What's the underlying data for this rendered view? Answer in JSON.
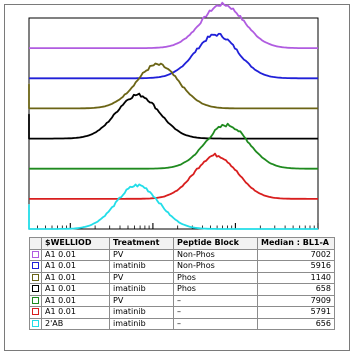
{
  "chart_data": {
    "type": "area",
    "style": "offset-histogram",
    "grid": false,
    "legend_placement": "bottom",
    "legend": {
      "columns": [
        "$WELLIOD",
        "Treatment",
        "Peptide Block",
        "Median : BL1-A"
      ],
      "rows": [
        {
          "well": "A1 0.01",
          "treatment": "PV",
          "peptide": "Non-Phos",
          "median": "7002",
          "color": "#b05ce0"
        },
        {
          "well": "A1 0.01",
          "treatment": "imatinib",
          "peptide": "Non-Phos",
          "median": "5916",
          "color": "#2020d8"
        },
        {
          "well": "A1 0.01",
          "treatment": "PV",
          "peptide": "Phos",
          "median": "1140",
          "color": "#6b6415"
        },
        {
          "well": "A1 0.01",
          "treatment": "imatinib",
          "peptide": "Phos",
          "median": "658",
          "color": "#000000"
        },
        {
          "well": "A1 0.01",
          "treatment": "PV",
          "peptide": "–",
          "median": "7909",
          "color": "#1f8a1f"
        },
        {
          "well": "A1 0.01",
          "treatment": "imatinib",
          "peptide": "–",
          "median": "5791",
          "color": "#d81e1e"
        },
        {
          "well": "2'AB",
          "treatment": "imatinib",
          "peptide": "–",
          "median": "656",
          "color": "#22dde8"
        }
      ]
    },
    "series": [
      {
        "color": "#b05ce0",
        "median": 7002
      },
      {
        "color": "#2020d8",
        "median": 5916
      },
      {
        "color": "#6b6415",
        "median": 1140
      },
      {
        "color": "#000000",
        "median": 658
      },
      {
        "color": "#1f8a1f",
        "median": 7909
      },
      {
        "color": "#d81e1e",
        "median": 5791
      },
      {
        "color": "#22dde8",
        "median": 656
      }
    ]
  }
}
